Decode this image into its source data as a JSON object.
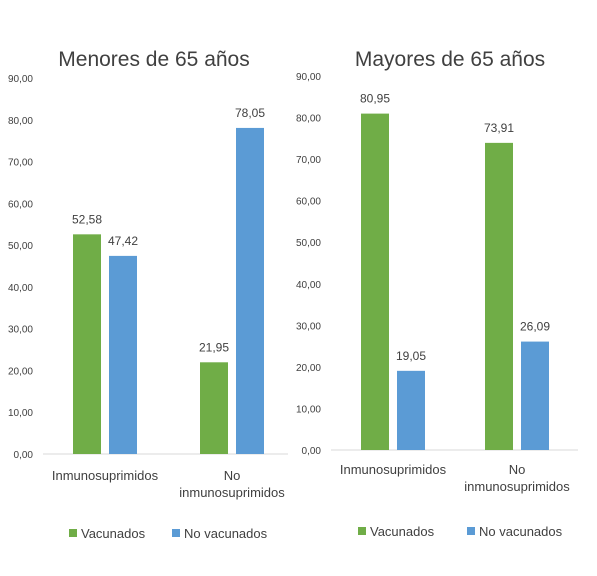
{
  "chart_data": [
    {
      "type": "bar",
      "title": "Menores de 65 años",
      "categories": [
        "Inmunosuprimidos",
        "No inmunosuprimidos"
      ],
      "category_lines": [
        [
          "Inmunosuprimidos"
        ],
        [
          "No",
          "inmunosuprimidos"
        ]
      ],
      "series": [
        {
          "name": "Vacunados",
          "color": "#70ad47",
          "values": [
            52.58,
            21.95
          ],
          "labels": [
            "52,58",
            "21,95"
          ]
        },
        {
          "name": "No vacunados",
          "color": "#5b9bd5",
          "values": [
            47.42,
            78.05
          ],
          "labels": [
            "47,42",
            "78,05"
          ]
        }
      ],
      "ylim": [
        0,
        90
      ],
      "yticks": [
        "0,00",
        "10,00",
        "20,00",
        "30,00",
        "40,00",
        "50,00",
        "60,00",
        "70,00",
        "80,00",
        "90,00"
      ],
      "grid": false,
      "legend": "bottom"
    },
    {
      "type": "bar",
      "title": "Mayores de 65 años",
      "categories": [
        "Inmunosuprimidos",
        "No inmunosuprimidos"
      ],
      "category_lines": [
        [
          "Inmunosuprimidos"
        ],
        [
          "No",
          "inmunosuprimidos"
        ]
      ],
      "series": [
        {
          "name": "Vacunados",
          "color": "#70ad47",
          "values": [
            80.95,
            73.91
          ],
          "labels": [
            "80,95",
            "73,91"
          ]
        },
        {
          "name": "No vacunados",
          "color": "#5b9bd5",
          "values": [
            19.05,
            26.09
          ],
          "labels": [
            "19,05",
            "26,09"
          ]
        }
      ],
      "ylim": [
        0,
        90
      ],
      "yticks": [
        "0,00",
        "10,00",
        "20,00",
        "30,00",
        "40,00",
        "50,00",
        "60,00",
        "70,00",
        "80,00",
        "90,00"
      ],
      "grid": false,
      "legend": "bottom"
    }
  ]
}
